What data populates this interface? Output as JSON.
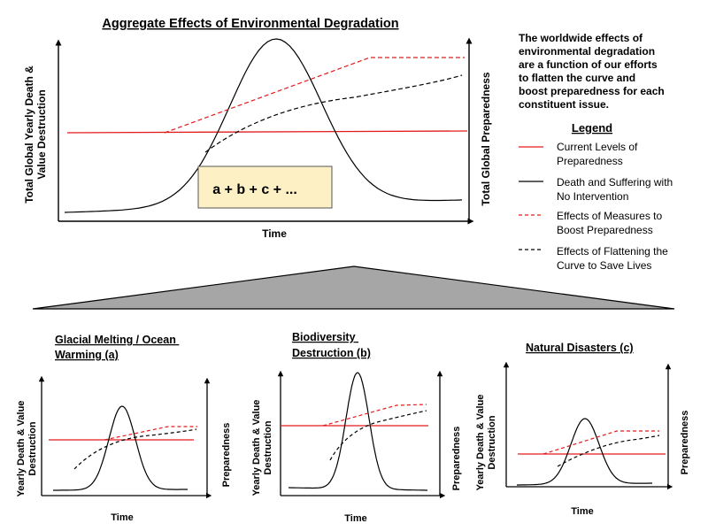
{
  "main": {
    "title": "Aggregate Effects of Environmental Degradation",
    "y_left_label_lines": [
      "Total Global Yearly  Death &",
      "Value Destruction"
    ],
    "y_right_label": "Total Global Preparedness",
    "x_label": "Time",
    "formula": "a + b + c + ..."
  },
  "side": {
    "description_lines": [
      "The worldwide effects of",
      "environmental degradation",
      "are a function of our efforts",
      "to flatten the curve and",
      "boost preparedness for each",
      "constituent issue."
    ],
    "legend_title": "Legend",
    "legend": [
      {
        "lines": [
          "Current Levels of",
          "Preparedness"
        ],
        "color": "#e31a1c",
        "dash": false
      },
      {
        "lines": [
          "Death and Suffering with",
          "No Intervention"
        ],
        "color": "#000000",
        "dash": false
      },
      {
        "lines": [
          "Effects of Measures to",
          "Boost Preparedness"
        ],
        "color": "#e31a1c",
        "dash": true
      },
      {
        "lines": [
          "Effects of Flattening the",
          "Curve to Save Lives"
        ],
        "color": "#000000",
        "dash": true
      }
    ]
  },
  "subcharts": [
    {
      "title_lines": [
        "Glacial Melting / Ocean",
        "Warming (a)"
      ],
      "y_left_lines": [
        "Yearly Death & Value",
        "Destruction"
      ],
      "y_right_lines": [
        "Preparedness"
      ],
      "x_label": "Time"
    },
    {
      "title_lines": [
        "Biodiversity",
        "Destruction (b)"
      ],
      "y_left_lines": [
        "Yearly Death & Value",
        "Destruction"
      ],
      "y_right_lines": [
        "Preparedness"
      ],
      "x_label": "Time"
    },
    {
      "title_lines": [
        "Natural Disasters (c)"
      ],
      "y_left_lines": [
        "Yearly Death & Value",
        "Destruction"
      ],
      "y_right_lines": [
        "Preparedness"
      ],
      "x_label": "Time"
    }
  ],
  "colors": {
    "accent_red": "#e31a1c",
    "formula_box_fill": "#fdf0c4",
    "triangle_fill": "#a6a6a6"
  }
}
